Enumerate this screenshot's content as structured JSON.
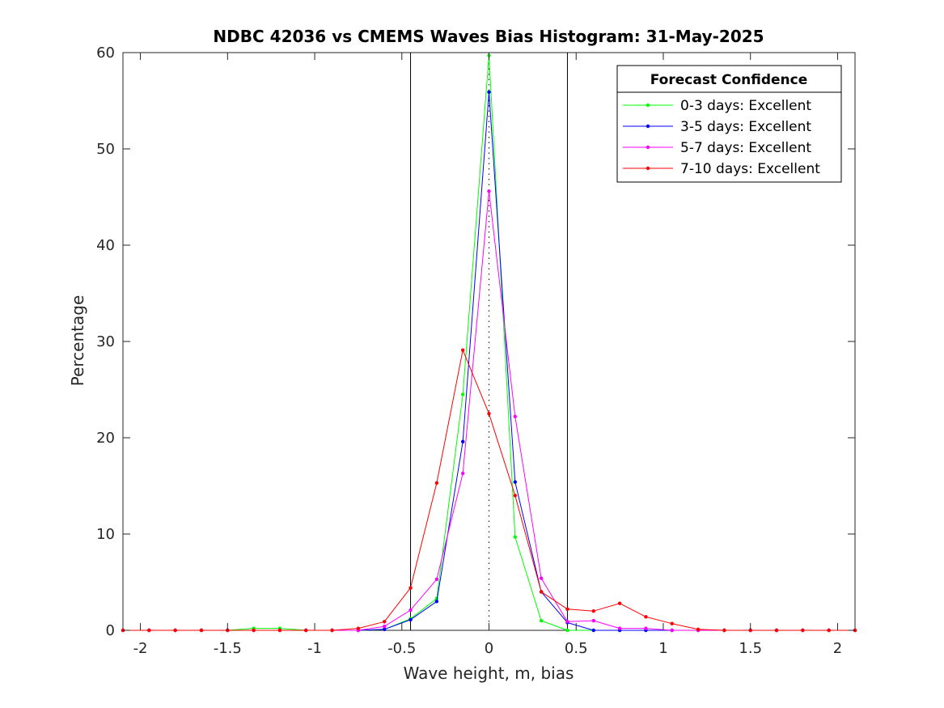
{
  "chart_data": {
    "type": "line",
    "title": "NDBC 42036 vs CMEMS Waves Bias Histogram: 31-May-2025",
    "xlabel": "Wave height, m, bias",
    "ylabel": "Percentage",
    "xlim": [
      -2.1,
      2.1
    ],
    "ylim": [
      0,
      60
    ],
    "xticks": [
      -2,
      -1.5,
      -1,
      -0.5,
      0,
      0.5,
      1,
      1.5,
      2
    ],
    "xtick_labels": [
      "-2",
      "-1.5",
      "-1",
      "-0.5",
      "0",
      "0.5",
      "1",
      "1.5",
      "2"
    ],
    "yticks": [
      0,
      10,
      20,
      30,
      40,
      50,
      60
    ],
    "ytick_labels": [
      "0",
      "10",
      "20",
      "30",
      "40",
      "50",
      "60"
    ],
    "vertical_lines": [
      -0.45,
      0.45
    ],
    "zero_line": 0,
    "legend_title": "Forecast Confidence",
    "legend_position": "top-right",
    "x": [
      -2.1,
      -1.95,
      -1.8,
      -1.65,
      -1.5,
      -1.35,
      -1.2,
      -1.05,
      -0.9,
      -0.75,
      -0.6,
      -0.45,
      -0.3,
      -0.15,
      0,
      0.15,
      0.3,
      0.45,
      0.6,
      0.75,
      0.9,
      1.05,
      1.2,
      1.35,
      1.5,
      1.65,
      1.8,
      1.95,
      2.1
    ],
    "series": [
      {
        "name": "0-3 days: Excellent",
        "color": "#00ff00",
        "values": [
          0,
          0,
          0,
          0,
          0,
          0.2,
          0.2,
          0,
          0,
          0,
          0.1,
          1.2,
          3.3,
          24.5,
          59.7,
          9.7,
          1.0,
          0,
          0,
          0,
          0,
          0,
          0,
          0,
          0,
          0,
          0,
          0,
          0
        ]
      },
      {
        "name": "3-5 days: Excellent",
        "color": "#0000ff",
        "values": [
          0,
          0,
          0,
          0,
          0,
          0,
          0,
          0,
          0,
          0,
          0.1,
          1.1,
          3.0,
          19.6,
          55.9,
          15.4,
          4.0,
          0.8,
          0,
          0,
          0,
          0,
          0,
          0,
          0,
          0,
          0,
          0,
          0
        ]
      },
      {
        "name": "5-7 days: Excellent",
        "color": "#ff00ff",
        "values": [
          0,
          0,
          0,
          0,
          0,
          0,
          0,
          0,
          0,
          0,
          0.4,
          2.1,
          5.3,
          16.3,
          45.6,
          22.2,
          5.4,
          0.9,
          1.0,
          0.2,
          0.2,
          0,
          0,
          0,
          0,
          0,
          0,
          0,
          0
        ]
      },
      {
        "name": "7-10 days: Excellent",
        "color": "#ff0000",
        "values": [
          0,
          0,
          0,
          0,
          0,
          0,
          0,
          0,
          0,
          0.2,
          0.9,
          4.4,
          15.3,
          29.1,
          22.5,
          14.0,
          4.0,
          2.2,
          2.0,
          2.8,
          1.4,
          0.7,
          0.1,
          0,
          0,
          0,
          0,
          0,
          0
        ]
      }
    ]
  }
}
